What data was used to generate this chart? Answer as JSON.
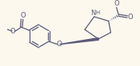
{
  "bg_color": "#fcf8ee",
  "line_color": "#5a5a7a",
  "line_width": 0.9,
  "figsize": [
    1.75,
    0.83
  ],
  "dpi": 100,
  "xlim": [
    0,
    175
  ],
  "ylim": [
    0,
    83
  ]
}
